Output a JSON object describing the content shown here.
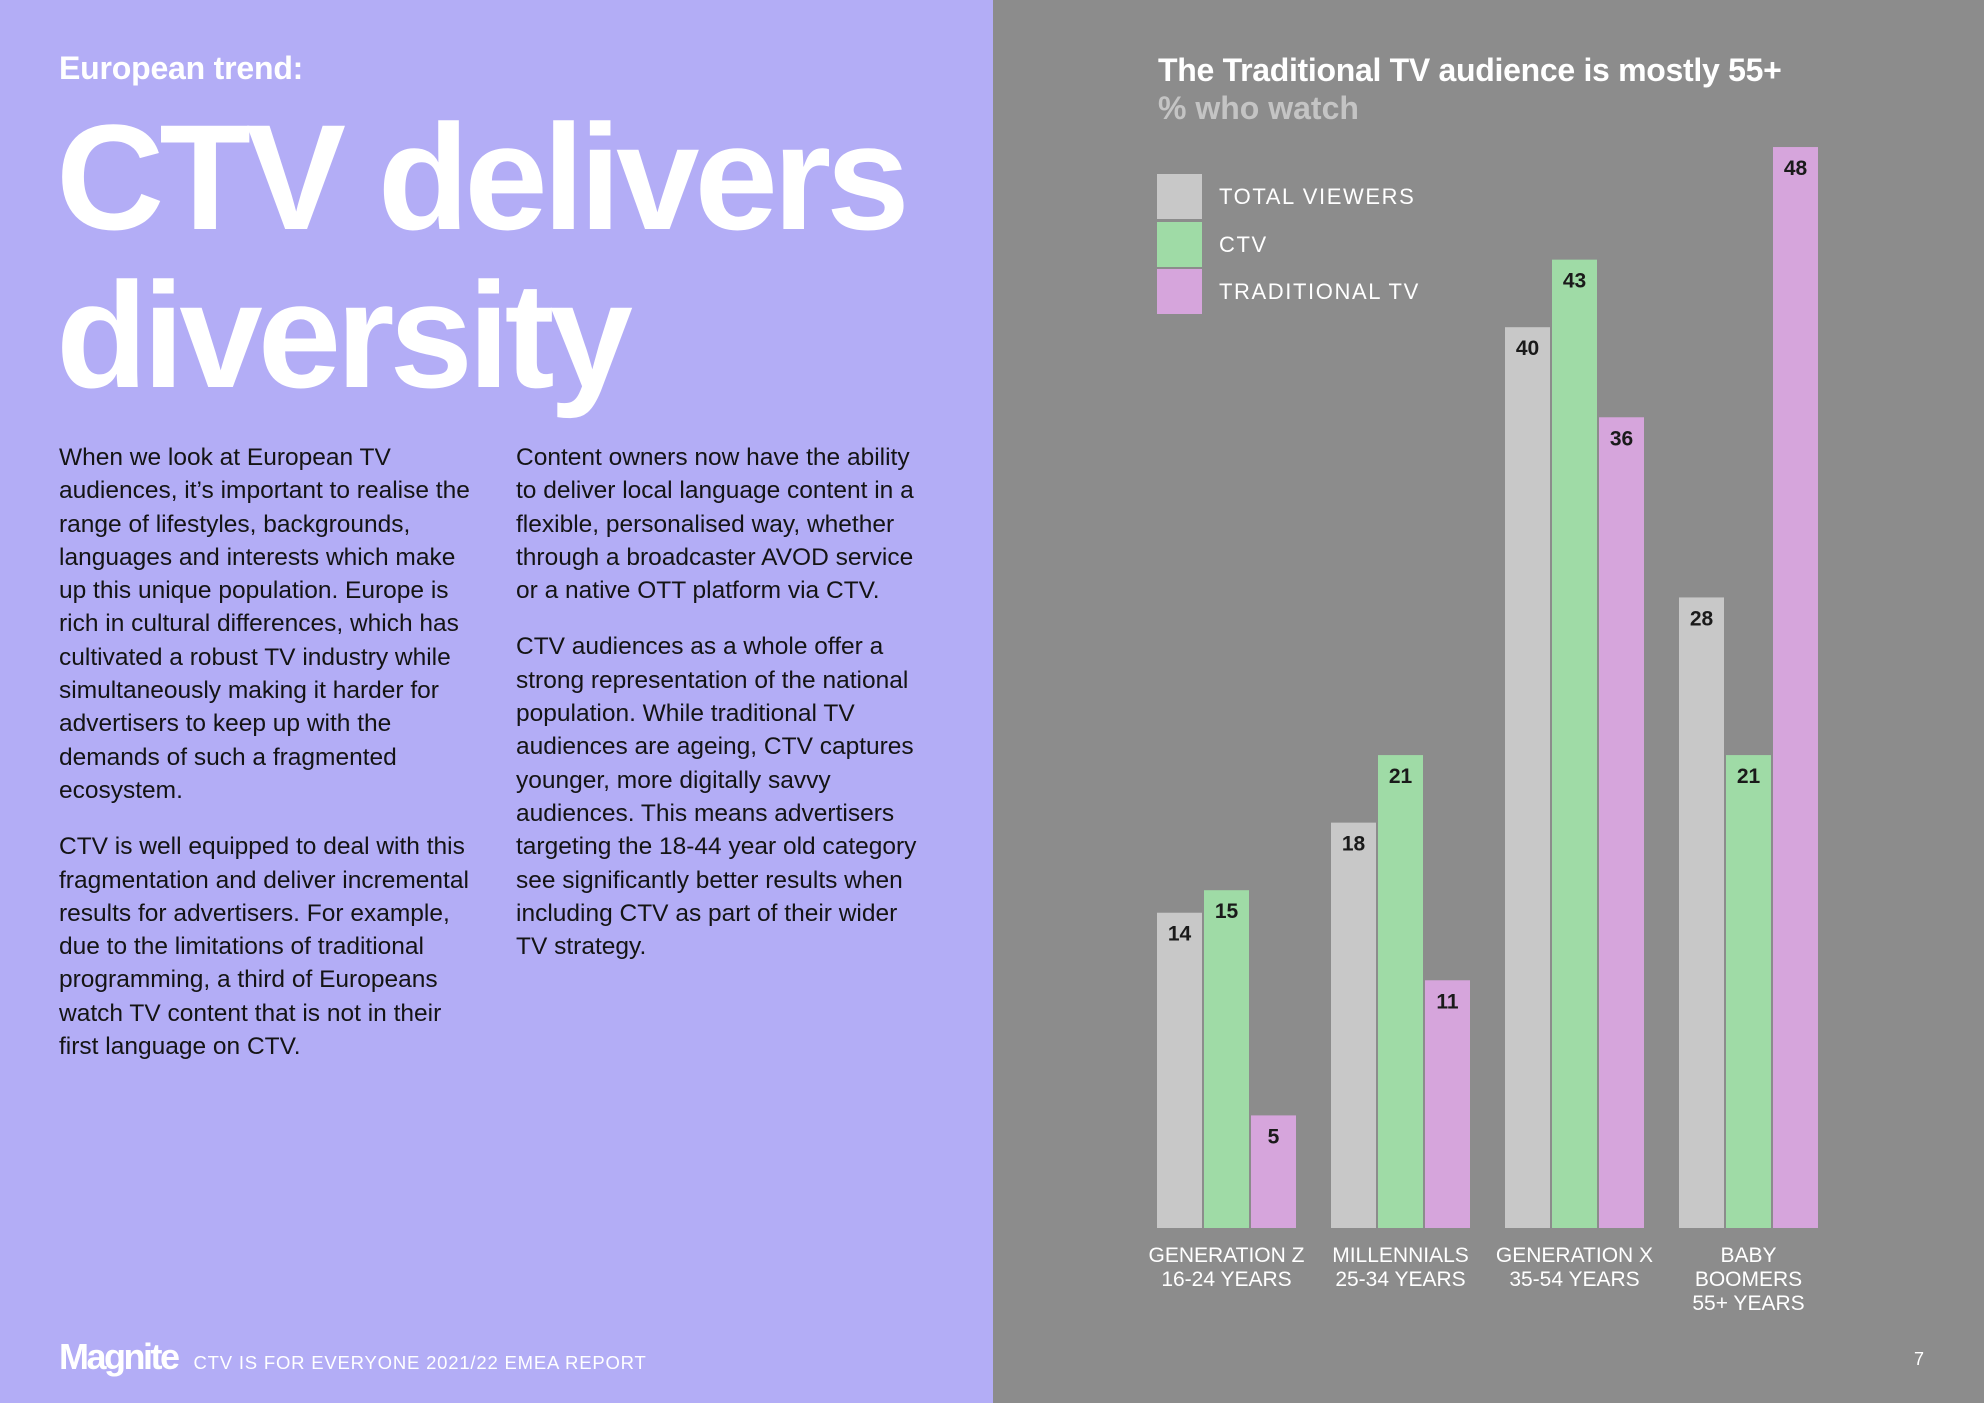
{
  "left": {
    "eyebrow": "European trend:",
    "headline_line1": "CTV delivers",
    "headline_line2": "diversity",
    "col1": [
      "When we look at European TV audiences, it’s important to realise the range of lifestyles, backgrounds, languages and interests which make up this unique population. Europe is rich in cultural differences, which has cultivated a robust TV industry while simultaneously making it harder for advertisers to keep up with the demands of such a fragmented ecosystem.",
      "CTV is well equipped to deal with this fragmentation and deliver incremental results for advertisers. For example, due to the limitations of traditional programming, a third of Europeans watch TV content that is not in their first language on CTV."
    ],
    "col2": [
      "Content owners now have the ability to deliver local language content in a flexible, personalised way, whether through a broadcaster AVOD service or a native OTT platform via CTV.",
      "CTV audiences as a whole offer a strong representation of the national population. While traditional TV audiences are ageing, CTV captures younger, more digitally savvy audiences. This means advertisers targeting the 18-44 year old category see significantly better results when including CTV as part of their wider TV strategy."
    ]
  },
  "footer": {
    "logo": "Magnite",
    "report": "CTV IS FOR EVERYONE 2021/22 EMEA REPORT",
    "page_number": "7"
  },
  "colors": {
    "left_bg": "#b3adf6",
    "right_bg": "#8c8c8c",
    "total_viewers": "#c8c8c8",
    "ctv": "#9fdba6",
    "traditional_tv": "#d6a5dc"
  },
  "chart_data": {
    "type": "bar",
    "title": "The Traditional TV audience is mostly 55+",
    "subtitle": "% who watch",
    "categories": [
      [
        "GENERATION Z",
        "16-24 YEARS"
      ],
      [
        "MILLENNIALS",
        "25-34 YEARS"
      ],
      [
        "GENERATION X",
        "35-54 YEARS"
      ],
      [
        "BABY",
        "BOOMERS",
        "55+ YEARS"
      ]
    ],
    "series": [
      {
        "name": "TOTAL VIEWERS",
        "color": "#c8c8c8",
        "values": [
          14,
          18,
          40,
          28
        ]
      },
      {
        "name": "CTV",
        "color": "#9fdba6",
        "values": [
          15,
          21,
          43,
          21
        ]
      },
      {
        "name": "TRADITIONAL TV",
        "color": "#d6a5dc",
        "values": [
          5,
          11,
          36,
          48
        ]
      }
    ],
    "ylim": [
      0,
      48
    ],
    "grid": false,
    "legend": "top-left",
    "data_labels": true
  }
}
